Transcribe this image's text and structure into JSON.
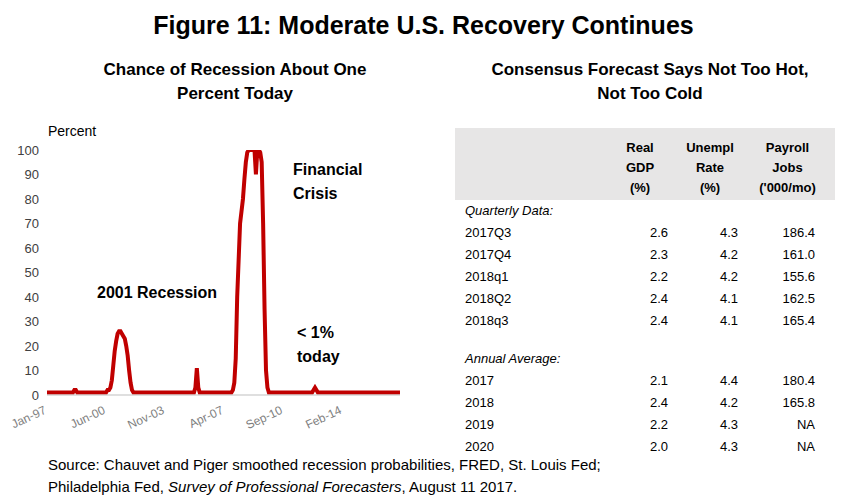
{
  "title": "Figure 11: Moderate U.S. Recovery Continues",
  "chart_data": {
    "type": "line",
    "title": "Chance of Recession About One Percent Today",
    "y_label": "Percent",
    "color": "#c00000",
    "grid": false,
    "ylim": [
      0,
      100
    ],
    "yticks": [
      0,
      10,
      20,
      30,
      40,
      50,
      60,
      70,
      80,
      90,
      100
    ],
    "annotations": [
      "2001 Recession",
      "Financial\nCrisis",
      "< 1%\ntoday"
    ],
    "categories": [
      "Jan-97",
      null,
      null,
      null,
      null,
      null,
      null,
      null,
      null,
      null,
      null,
      null,
      null,
      null,
      null,
      null,
      null,
      null,
      null,
      null,
      null,
      null,
      null,
      null,
      null,
      null,
      null,
      null,
      null,
      null,
      null,
      null,
      null,
      null,
      null,
      null,
      null,
      null,
      null,
      null,
      null,
      "Jun-00",
      null,
      null,
      null,
      null,
      null,
      null,
      null,
      null,
      null,
      null,
      null,
      null,
      null,
      null,
      null,
      null,
      null,
      null,
      null,
      null,
      null,
      null,
      null,
      null,
      null,
      null,
      null,
      null,
      null,
      null,
      null,
      null,
      null,
      null,
      null,
      null,
      null,
      null,
      null,
      null,
      "Nov-03",
      null,
      null,
      null,
      null,
      null,
      null,
      null,
      null,
      null,
      null,
      null,
      null,
      null,
      null,
      null,
      null,
      null,
      null,
      null,
      null,
      null,
      null,
      null,
      null,
      null,
      null,
      null,
      null,
      null,
      null,
      null,
      null,
      null,
      null,
      null,
      null,
      null,
      null,
      null,
      null,
      "Apr-07",
      null,
      null,
      null,
      null,
      null,
      null,
      null,
      null,
      null,
      null,
      null,
      null,
      null,
      null,
      null,
      null,
      null,
      null,
      null,
      null,
      null,
      null,
      null,
      null,
      null,
      null,
      null,
      null,
      null,
      null,
      null,
      null,
      null,
      null,
      null,
      null,
      null,
      null,
      null,
      null,
      "Sep-10",
      null,
      null,
      null,
      null,
      null,
      null,
      null,
      null,
      null,
      null,
      null,
      null,
      null,
      null,
      null,
      null,
      null,
      null,
      null,
      null,
      null,
      null,
      null,
      null,
      null,
      null,
      null,
      null,
      null,
      null,
      null,
      null,
      null,
      null,
      null,
      null,
      null,
      null,
      null,
      null,
      "Feb-14",
      null,
      null,
      null,
      null,
      null,
      null,
      null,
      null,
      null,
      null,
      null,
      null,
      null,
      null,
      null,
      null,
      null,
      null,
      null,
      null,
      null,
      null,
      null,
      null,
      null,
      null,
      null,
      null,
      null,
      null,
      null,
      null,
      null,
      null,
      null,
      null,
      null,
      null,
      null,
      null
    ],
    "values": [
      1,
      1,
      1,
      1,
      1,
      1,
      1,
      1,
      1,
      1,
      1,
      1,
      1,
      1,
      1,
      1,
      1,
      1,
      1,
      2,
      2,
      1,
      1,
      1,
      1,
      1,
      1,
      1,
      1,
      1,
      1,
      1,
      1,
      1,
      1,
      1,
      1,
      1,
      1,
      1,
      1,
      1,
      2,
      2,
      3,
      6,
      12,
      18,
      22,
      25,
      26,
      26,
      25,
      24,
      23,
      20,
      16,
      10,
      5,
      2,
      1,
      1,
      1,
      1,
      1,
      1,
      1,
      1,
      1,
      1,
      1,
      1,
      1,
      1,
      1,
      1,
      1,
      1,
      1,
      1,
      1,
      1,
      1,
      1,
      1,
      1,
      1,
      1,
      1,
      1,
      1,
      1,
      1,
      1,
      1,
      1,
      1,
      1,
      1,
      1,
      1,
      1,
      1,
      3,
      11,
      3,
      1,
      1,
      1,
      1,
      1,
      1,
      1,
      1,
      1,
      1,
      1,
      1,
      1,
      1,
      1,
      1,
      1,
      1,
      1,
      1,
      1,
      1,
      1,
      2,
      5,
      15,
      40,
      55,
      70,
      75,
      80,
      88,
      95,
      99,
      100,
      100,
      100,
      100,
      100,
      90,
      100,
      100,
      99,
      95,
      70,
      35,
      10,
      3,
      1,
      1,
      1,
      1,
      1,
      1,
      1,
      1,
      1,
      1,
      1,
      1,
      1,
      1,
      1,
      1,
      1,
      1,
      1,
      1,
      1,
      1,
      1,
      1,
      1,
      1,
      1,
      1,
      1,
      1,
      1,
      2,
      3,
      2,
      1,
      1,
      1,
      1,
      1,
      1,
      1,
      1,
      1,
      1,
      1,
      1,
      1,
      1,
      1,
      1,
      1,
      1,
      1,
      1,
      1,
      1,
      1,
      1,
      1,
      1,
      1,
      1,
      1,
      1,
      1,
      1,
      1,
      1,
      1,
      1,
      1,
      1,
      1,
      1,
      1,
      1,
      1,
      1,
      1,
      1,
      1,
      1,
      1,
      1,
      1,
      1,
      1,
      1,
      1,
      1,
      1,
      1
    ]
  },
  "table": {
    "title": "Consensus Forecast Says Not Too Hot, Not Too Cold",
    "columns": [
      "Real\nGDP\n(%)",
      "Unempl\nRate\n(%)",
      "Payroll\nJobs\n('000/mo)"
    ],
    "sections": [
      {
        "title": "Quarterly Data:",
        "rows": [
          [
            "2017Q3",
            "2.6",
            "4.3",
            "186.4"
          ],
          [
            "2017Q4",
            "2.3",
            "4.2",
            "161.0"
          ],
          [
            "2018q1",
            "2.2",
            "4.2",
            "155.6"
          ],
          [
            "2018Q2",
            "2.4",
            "4.1",
            "162.5"
          ],
          [
            "2018q3",
            "2.4",
            "4.1",
            "165.4"
          ]
        ]
      },
      {
        "title": "Annual Average:",
        "rows": [
          [
            "2017",
            "2.1",
            "4.4",
            "180.4"
          ],
          [
            "2018",
            "2.4",
            "4.2",
            "165.8"
          ],
          [
            "2019",
            "2.2",
            "4.3",
            "NA"
          ],
          [
            "2020",
            "2.0",
            "4.3",
            "NA"
          ]
        ]
      }
    ]
  },
  "source": [
    [
      {
        "text": "Source: Chauvet and Piger smoothed recession probabilities, FRED, St. Louis Fed;"
      }
    ],
    [
      {
        "text": "Philadelphia Fed, "
      },
      {
        "text": "Survey of Professional Forecasters",
        "italic": true
      },
      {
        "text": ", August 11 2017."
      }
    ]
  ]
}
